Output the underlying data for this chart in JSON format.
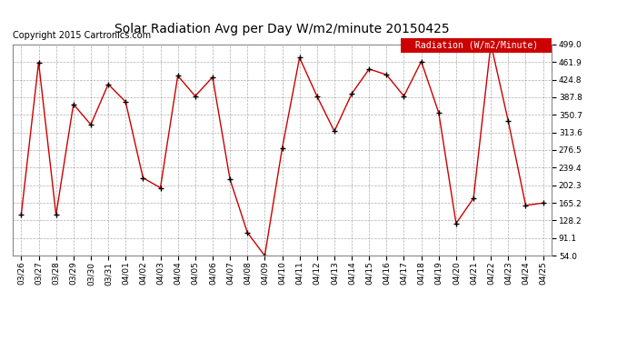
{
  "title": "Solar Radiation Avg per Day W/m2/minute 20150425",
  "copyright": "Copyright 2015 Cartronics.com",
  "legend_label": "Radiation (W/m2/Minute)",
  "dates": [
    "03/26",
    "03/27",
    "03/28",
    "03/29",
    "03/30",
    "03/31",
    "04/01",
    "04/02",
    "04/03",
    "04/04",
    "04/05",
    "04/06",
    "04/07",
    "04/08",
    "04/09",
    "04/10",
    "04/11",
    "04/12",
    "04/13",
    "04/14",
    "04/15",
    "04/16",
    "04/17",
    "04/18",
    "04/19",
    "04/20",
    "04/21",
    "04/22",
    "04/23",
    "04/24",
    "04/25"
  ],
  "values": [
    141,
    461,
    140,
    373,
    330,
    415,
    378,
    218,
    197,
    433,
    390,
    430,
    215,
    103,
    54,
    280,
    471,
    390,
    316,
    395,
    447,
    435,
    390,
    463,
    355,
    122,
    175,
    500,
    337,
    160,
    165
  ],
  "ymin": 54.0,
  "ymax": 499.0,
  "yticks": [
    54.0,
    91.1,
    128.2,
    165.2,
    202.3,
    239.4,
    276.5,
    313.6,
    350.7,
    387.8,
    424.8,
    461.9,
    499.0
  ],
  "line_color": "#cc0000",
  "marker_color": "#000000",
  "bg_color": "#ffffff",
  "grid_color": "#999999",
  "legend_bg": "#cc0000",
  "legend_text_color": "#ffffff",
  "title_fontsize": 10,
  "copyright_fontsize": 7,
  "legend_fontsize": 7,
  "tick_fontsize": 6.5
}
